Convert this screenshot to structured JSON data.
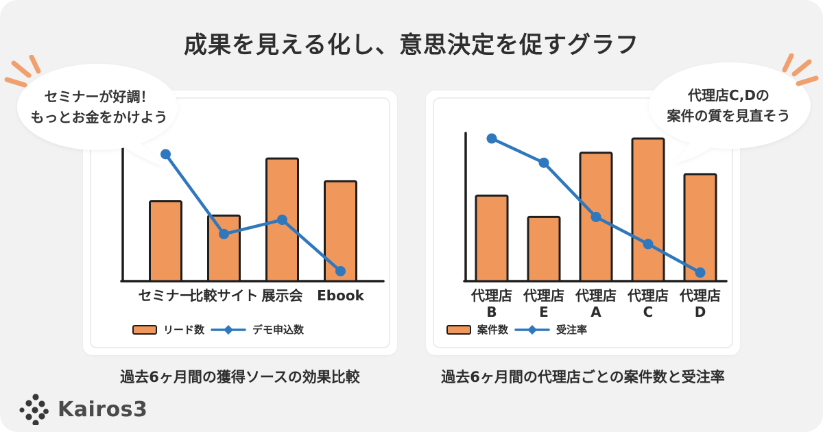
{
  "page": {
    "title": "成果を見える化し、意思決定を促すグラフ",
    "brand": "Kairos3"
  },
  "bubbles": {
    "left": {
      "line1": "セミナーが好調！",
      "line2": "もっとお金をかけよう"
    },
    "right": {
      "line1": "代理店C,Dの",
      "line2": "案件の質を見直そう"
    }
  },
  "colors": {
    "background": "#F2F2F2",
    "card": "#FFFFFF",
    "ink": "#1E1E1E",
    "accent_orange": "#F0975C",
    "accent_blue": "#2F78BD",
    "burst_orange": "#EFA06E"
  },
  "chart_data": [
    {
      "type": "bar+line",
      "caption": "過去6ヶ月間の獲得ソースの効果比較",
      "categories": [
        "セミナー",
        "比較サイト",
        "展示会",
        "Ebook"
      ],
      "series": [
        {
          "name": "リード数",
          "type": "bar",
          "values": [
            56,
            46,
            86,
            70
          ]
        },
        {
          "name": "デモ申込数",
          "type": "line",
          "values": [
            89,
            33,
            43,
            7
          ]
        }
      ],
      "ylim": [
        0,
        100
      ],
      "grid": false,
      "axis_tick_labels": "none (relative scale estimated 0-100)",
      "legend_position": "bottom-left"
    },
    {
      "type": "bar+line",
      "caption": "過去6ヶ月間の代理店ごとの案件数と受注率",
      "categories": [
        "代理店\nB",
        "代理店\nE",
        "代理店\nA",
        "代理店\nC",
        "代理店\nD"
      ],
      "series": [
        {
          "name": "案件数",
          "type": "bar",
          "values": [
            60,
            45,
            90,
            100,
            75
          ]
        },
        {
          "name": "受注率",
          "type": "line",
          "values": [
            100,
            83,
            45,
            26,
            6
          ]
        }
      ],
      "ylim": [
        0,
        100
      ],
      "grid": false,
      "axis_tick_labels": "none (relative scale estimated 0-100)",
      "legend_position": "bottom-left"
    }
  ]
}
